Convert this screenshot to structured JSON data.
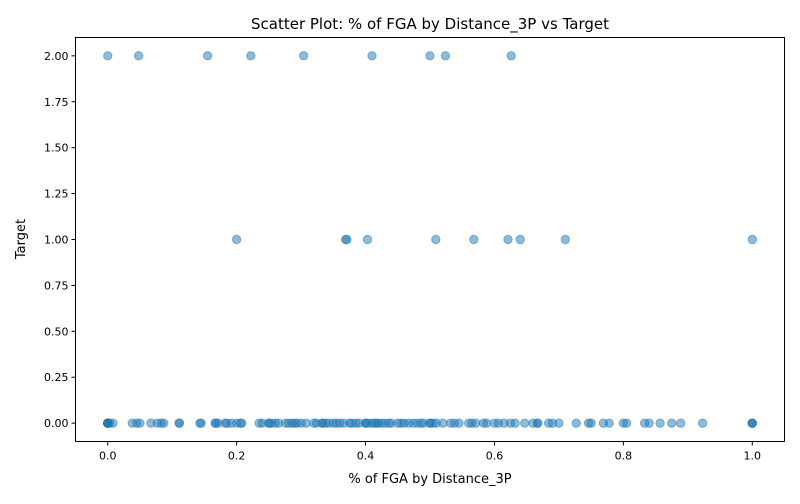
{
  "chart_data": {
    "type": "scatter",
    "title": "Scatter Plot: % of FGA by Distance_3P vs Target",
    "xlabel": "% of FGA by Distance_3P",
    "ylabel": "Target",
    "xlim": [
      -0.05,
      1.05
    ],
    "ylim": [
      -0.1,
      2.1
    ],
    "xticks": [
      0.0,
      0.2,
      0.4,
      0.6,
      0.8,
      1.0
    ],
    "xtick_labels": [
      "0.0",
      "0.2",
      "0.4",
      "0.6",
      "0.8",
      "1.0"
    ],
    "yticks": [
      0.0,
      0.25,
      0.5,
      0.75,
      1.0,
      1.25,
      1.5,
      1.75,
      2.0
    ],
    "ytick_labels": [
      "0.00",
      "0.25",
      "0.50",
      "0.75",
      "1.00",
      "1.25",
      "1.50",
      "1.75",
      "2.00"
    ],
    "grid": false,
    "marker_color": "#1f77b4",
    "marker_alpha": 0.5,
    "series": [
      {
        "x": [
          0.0,
          0.048,
          0.155,
          0.222,
          0.304,
          0.41,
          0.5,
          0.524,
          0.626,
          0.2,
          0.369,
          0.371,
          0.403,
          0.509,
          0.568,
          0.621,
          0.64,
          0.71,
          1.0,
          0.0,
          0.0,
          0.0,
          0.0,
          0.0,
          0.003,
          0.008,
          0.038,
          0.045,
          0.05,
          0.067,
          0.077,
          0.083,
          0.087,
          0.111,
          0.111,
          0.143,
          0.145,
          0.167,
          0.167,
          0.171,
          0.182,
          0.185,
          0.192,
          0.2,
          0.206,
          0.208,
          0.235,
          0.24,
          0.25,
          0.25,
          0.254,
          0.26,
          0.265,
          0.276,
          0.281,
          0.286,
          0.29,
          0.294,
          0.3,
          0.308,
          0.32,
          0.324,
          0.333,
          0.333,
          0.338,
          0.343,
          0.35,
          0.355,
          0.36,
          0.366,
          0.375,
          0.379,
          0.385,
          0.39,
          0.4,
          0.4,
          0.404,
          0.41,
          0.414,
          0.417,
          0.42,
          0.425,
          0.43,
          0.436,
          0.44,
          0.45,
          0.455,
          0.46,
          0.467,
          0.474,
          0.48,
          0.486,
          0.49,
          0.5,
          0.5,
          0.505,
          0.51,
          0.52,
          0.532,
          0.538,
          0.545,
          0.56,
          0.565,
          0.571,
          0.583,
          0.588,
          0.6,
          0.606,
          0.615,
          0.625,
          0.632,
          0.647,
          0.66,
          0.667,
          0.667,
          0.684,
          0.69,
          0.7,
          0.727,
          0.746,
          0.75,
          0.769,
          0.778,
          0.8,
          0.805,
          0.833,
          0.84,
          0.857,
          0.875,
          0.889,
          0.923,
          1.0,
          1.0,
          1.0
        ],
        "y": [
          2,
          2,
          2,
          2,
          2,
          2,
          2,
          2,
          2,
          1,
          1,
          1,
          1,
          1,
          1,
          1,
          1,
          1,
          1,
          0,
          0,
          0,
          0,
          0,
          0,
          0,
          0,
          0,
          0,
          0,
          0,
          0,
          0,
          0,
          0,
          0,
          0,
          0,
          0,
          0,
          0,
          0,
          0,
          0,
          0,
          0,
          0,
          0,
          0,
          0,
          0,
          0,
          0,
          0,
          0,
          0,
          0,
          0,
          0,
          0,
          0,
          0,
          0,
          0,
          0,
          0,
          0,
          0,
          0,
          0,
          0,
          0,
          0,
          0,
          0,
          0,
          0,
          0,
          0,
          0,
          0,
          0,
          0,
          0,
          0,
          0,
          0,
          0,
          0,
          0,
          0,
          0,
          0,
          0,
          0,
          0,
          0,
          0,
          0,
          0,
          0,
          0,
          0,
          0,
          0,
          0,
          0,
          0,
          0,
          0,
          0,
          0,
          0,
          0,
          0,
          0,
          0,
          0,
          0,
          0,
          0,
          0,
          0,
          0,
          0,
          0,
          0,
          0,
          0,
          0,
          0,
          0,
          0,
          0
        ]
      }
    ]
  }
}
